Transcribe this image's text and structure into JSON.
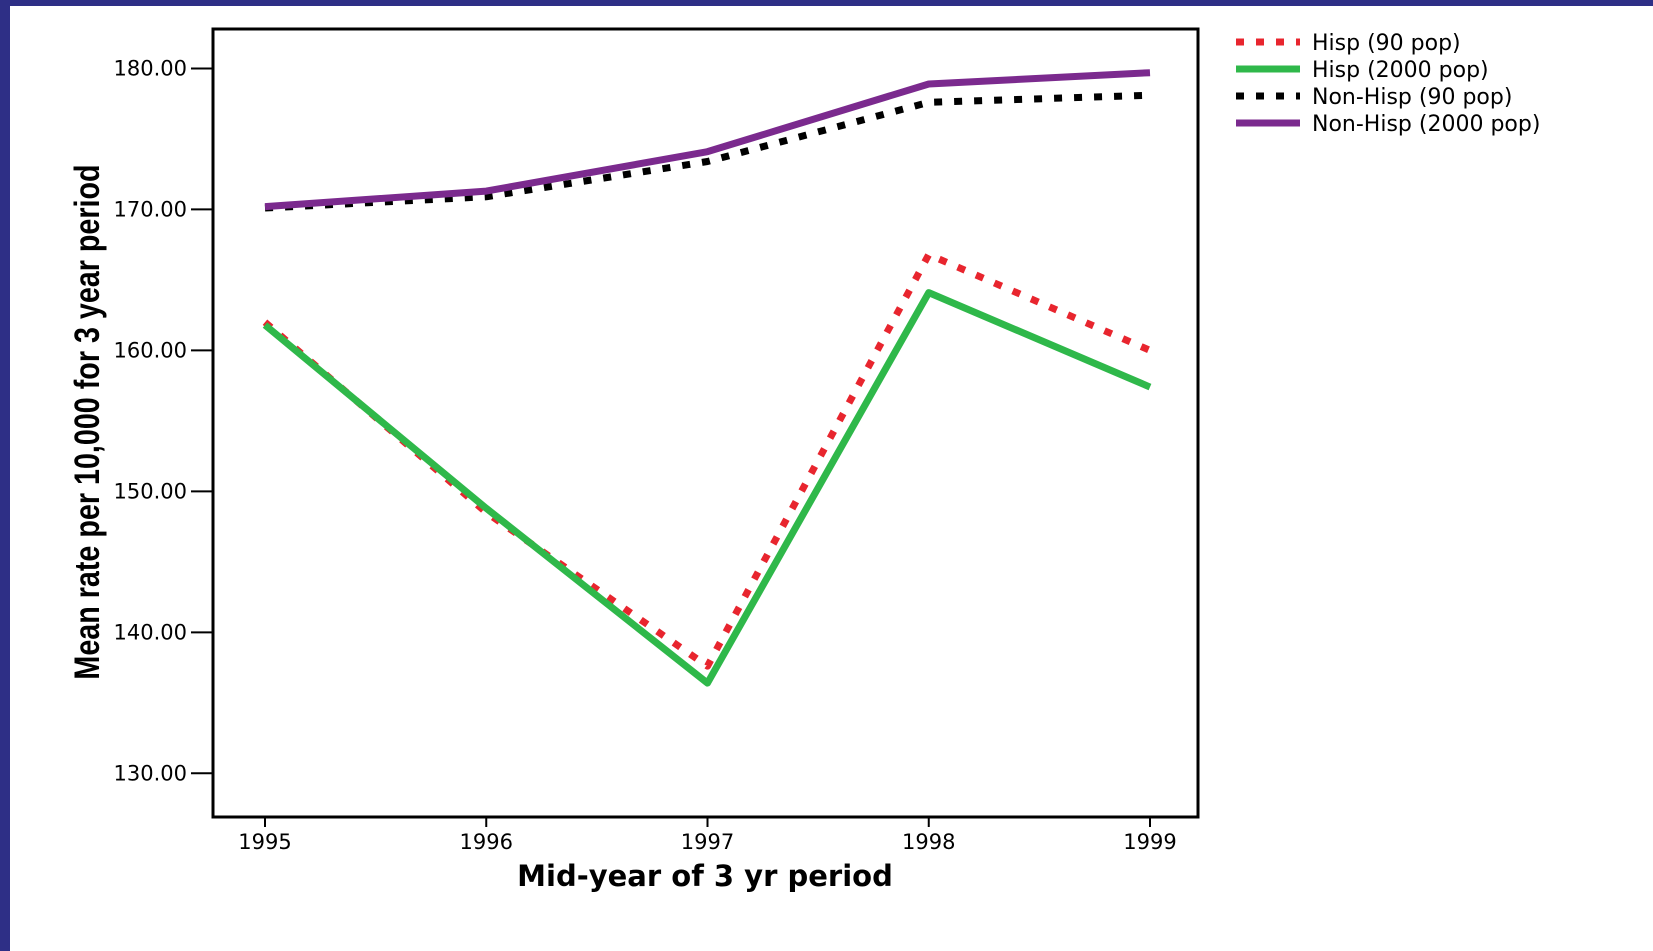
{
  "colors": {
    "background": "#2e2f86",
    "plot_background": "#ffffff"
  },
  "chart_data": {
    "type": "line",
    "title": "",
    "xlabel": "Mid-year of 3 yr period",
    "ylabel": "Mean rate per 10,000 for 3 year period",
    "x": [
      1995,
      1996,
      1997,
      1998,
      1999
    ],
    "x_tick_labels": [
      "1995",
      "1996",
      "1997",
      "1998",
      "1999"
    ],
    "y_ticks": [
      130,
      140,
      150,
      160,
      170,
      180
    ],
    "y_tick_labels": [
      "130.00",
      "140.00",
      "150.00",
      "160.00",
      "170.00",
      "180.00"
    ],
    "ylim": [
      126.9,
      182.8
    ],
    "grid": false,
    "legend_position": "top-right, outside plot",
    "series": [
      {
        "name": "Hisp (90 pop)",
        "values": [
          162.0,
          148.5,
          137.6,
          166.8,
          160.0
        ],
        "color": "#e8252e",
        "style": "dotted"
      },
      {
        "name": "Hisp (2000 pop)",
        "values": [
          161.8,
          148.8,
          136.4,
          164.1,
          157.4
        ],
        "color": "#2fb84a",
        "style": "solid"
      },
      {
        "name": "Non-Hisp (90 pop)",
        "values": [
          170.1,
          170.9,
          173.4,
          177.6,
          178.1
        ],
        "color": "#000000",
        "style": "dotted"
      },
      {
        "name": "Non-Hisp (2000 pop)",
        "values": [
          170.2,
          171.3,
          174.1,
          178.9,
          179.7
        ],
        "color": "#7b2a8e",
        "style": "solid"
      }
    ]
  }
}
